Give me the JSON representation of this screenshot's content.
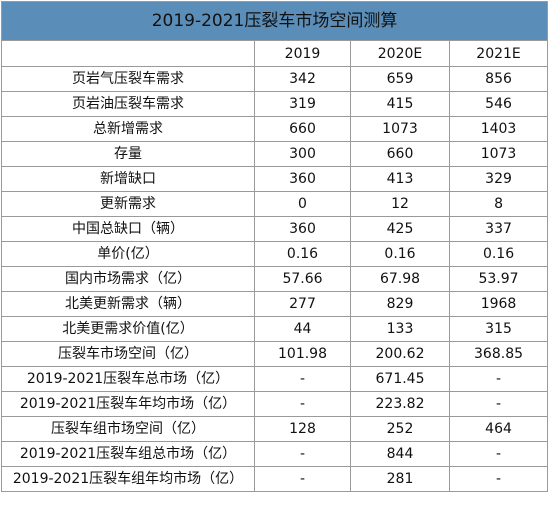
{
  "table": {
    "title": "2019-2021压裂车市场空间测算",
    "columns": [
      "",
      "2019",
      "2020E",
      "2021E"
    ],
    "rows": [
      {
        "label": "页岩气压裂车需求",
        "values": [
          "342",
          "659",
          "856"
        ]
      },
      {
        "label": "页岩油压裂车需求",
        "values": [
          "319",
          "415",
          "546"
        ]
      },
      {
        "label": "总新增需求",
        "values": [
          "660",
          "1073",
          "1403"
        ]
      },
      {
        "label": "存量",
        "values": [
          "300",
          "660",
          "1073"
        ]
      },
      {
        "label": "新增缺口",
        "values": [
          "360",
          "413",
          "329"
        ]
      },
      {
        "label": "更新需求",
        "values": [
          "0",
          "12",
          "8"
        ]
      },
      {
        "label": "中国总缺口（辆）",
        "values": [
          "360",
          "425",
          "337"
        ]
      },
      {
        "label": "单价(亿）",
        "values": [
          "0.16",
          "0.16",
          "0.16"
        ]
      },
      {
        "label": "国内市场需求（亿）",
        "values": [
          "57.66",
          "67.98",
          "53.97"
        ]
      },
      {
        "label": "北美更新需求（辆）",
        "values": [
          "277",
          "829",
          "1968"
        ]
      },
      {
        "label": "北美更需求价值(亿）",
        "values": [
          "44",
          "133",
          "315"
        ]
      },
      {
        "label": "压裂车市场空间（亿）",
        "values": [
          "101.98",
          "200.62",
          "368.85"
        ]
      },
      {
        "label": "2019-2021压裂车总市场（亿）",
        "values": [
          "-",
          "671.45",
          "-"
        ]
      },
      {
        "label": "2019-2021压裂车年均市场（亿）",
        "values": [
          "-",
          "223.82",
          "-"
        ]
      },
      {
        "label": "压裂车组市场空间（亿）",
        "values": [
          "128",
          "252",
          "464"
        ]
      },
      {
        "label": "2019-2021压裂车组总市场（亿）",
        "values": [
          "-",
          "844",
          "-"
        ]
      },
      {
        "label": "2019-2021压裂车组年均市场（亿）",
        "values": [
          "-",
          "281",
          "-"
        ]
      }
    ]
  },
  "colors": {
    "title_bg": "#5a8db8",
    "border": "#9a9a9a"
  }
}
